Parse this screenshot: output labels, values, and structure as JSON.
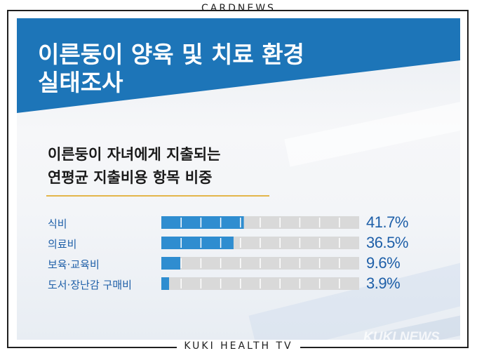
{
  "header": {
    "label": "CARDNEWS"
  },
  "footer": {
    "label": "KUKI HEALTH TV"
  },
  "title": {
    "line1": "이른둥이 양육 및 치료 환경",
    "line2": "실태조사"
  },
  "subtitle": {
    "line1": "이른둥이 자녀에게 지출되는",
    "line2": "연평균 지출비용 항목 비중"
  },
  "watermark": "KUKI NEWS",
  "colors": {
    "banner": "#1d75b8",
    "bar_fill": "#2f8dd0",
    "bar_track": "#d9d9d9",
    "accent_text": "#1e5fa8",
    "underline": "#e3b64a"
  },
  "chart_data": {
    "type": "bar",
    "orientation": "horizontal",
    "unit": "%",
    "categories": [
      "식비",
      "의료비",
      "보육·교육비",
      "도서·장난감 구매비"
    ],
    "values": [
      41.7,
      36.5,
      9.6,
      3.9
    ],
    "value_labels": [
      "41.7%",
      "36.5%",
      "9.6%",
      "3.9%"
    ],
    "xlim": [
      0,
      100
    ],
    "title": "",
    "xlabel": "",
    "ylabel": ""
  }
}
